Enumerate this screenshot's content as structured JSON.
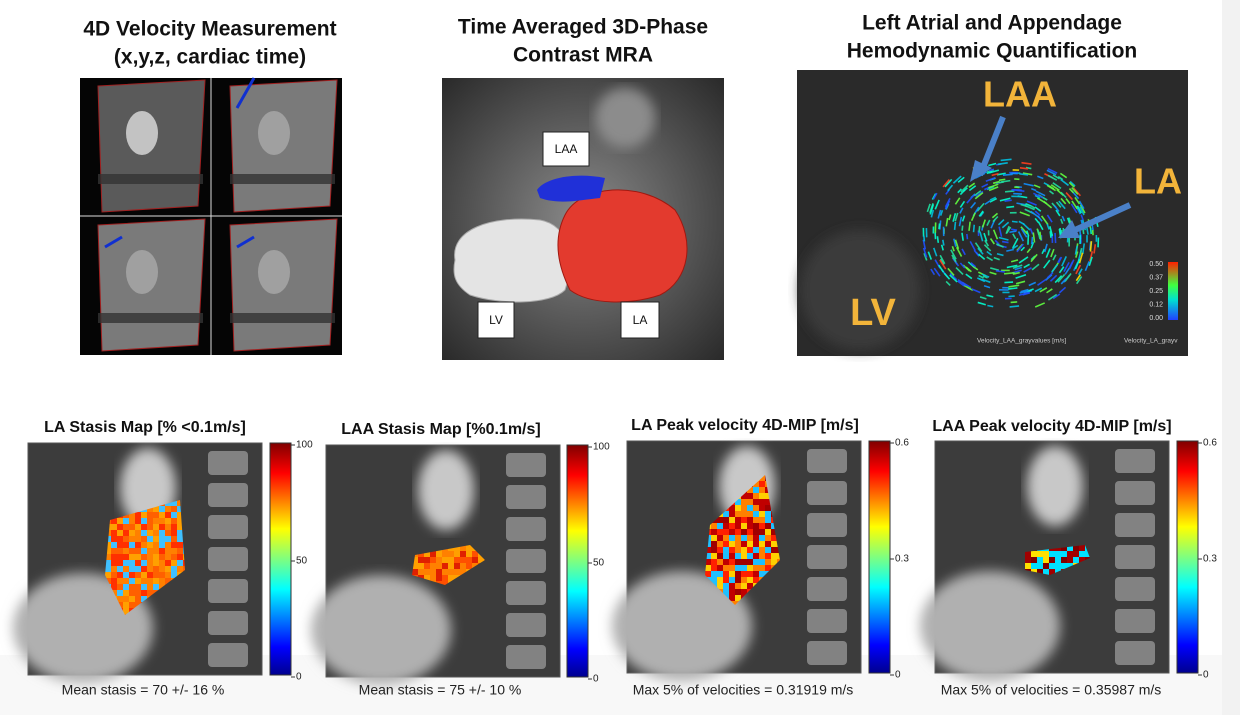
{
  "top_panels": [
    {
      "title": [
        "4D Velocity Measurement",
        "(x,y,z, cardiac time)"
      ]
    },
    {
      "title": [
        "Time Averaged 3D-Phase",
        "Contrast MRA"
      ],
      "labels": [
        "LAA",
        "LV",
        "LA"
      ]
    },
    {
      "title": [
        "Left Atrial and Appendage",
        "Hemodynamic Quantification"
      ],
      "labels": [
        "LAA",
        "LA",
        "LV"
      ],
      "colorbar": [
        "0.50",
        "0.37",
        "0.25",
        "0.12",
        "0.00"
      ],
      "footer": [
        "Velocity_LAA_grayvalues [m/s]",
        "Velocity_LA_grayv"
      ]
    }
  ],
  "maps": [
    {
      "title": "LA Stasis Map [% <0.1m/s]",
      "ticks": [
        "100",
        "50",
        "0"
      ],
      "caption": "Mean stasis = 70 +/- 16 %"
    },
    {
      "title": "LAA Stasis Map [%0.1m/s]",
      "ticks": [
        "100",
        "50",
        "0"
      ],
      "caption": "Mean stasis = 75 +/- 10 %"
    },
    {
      "title": "LA Peak velocity 4D-MIP [m/s]",
      "ticks": [
        "0.6",
        "0.3",
        "0"
      ],
      "caption": "Max 5% of velocities = 0.31919 m/s"
    },
    {
      "title": "LAA Peak velocity 4D-MIP [m/s]",
      "ticks": [
        "0.6",
        "0.3",
        "0"
      ],
      "caption": "Max 5% of velocities = 0.35987 m/s"
    }
  ]
}
